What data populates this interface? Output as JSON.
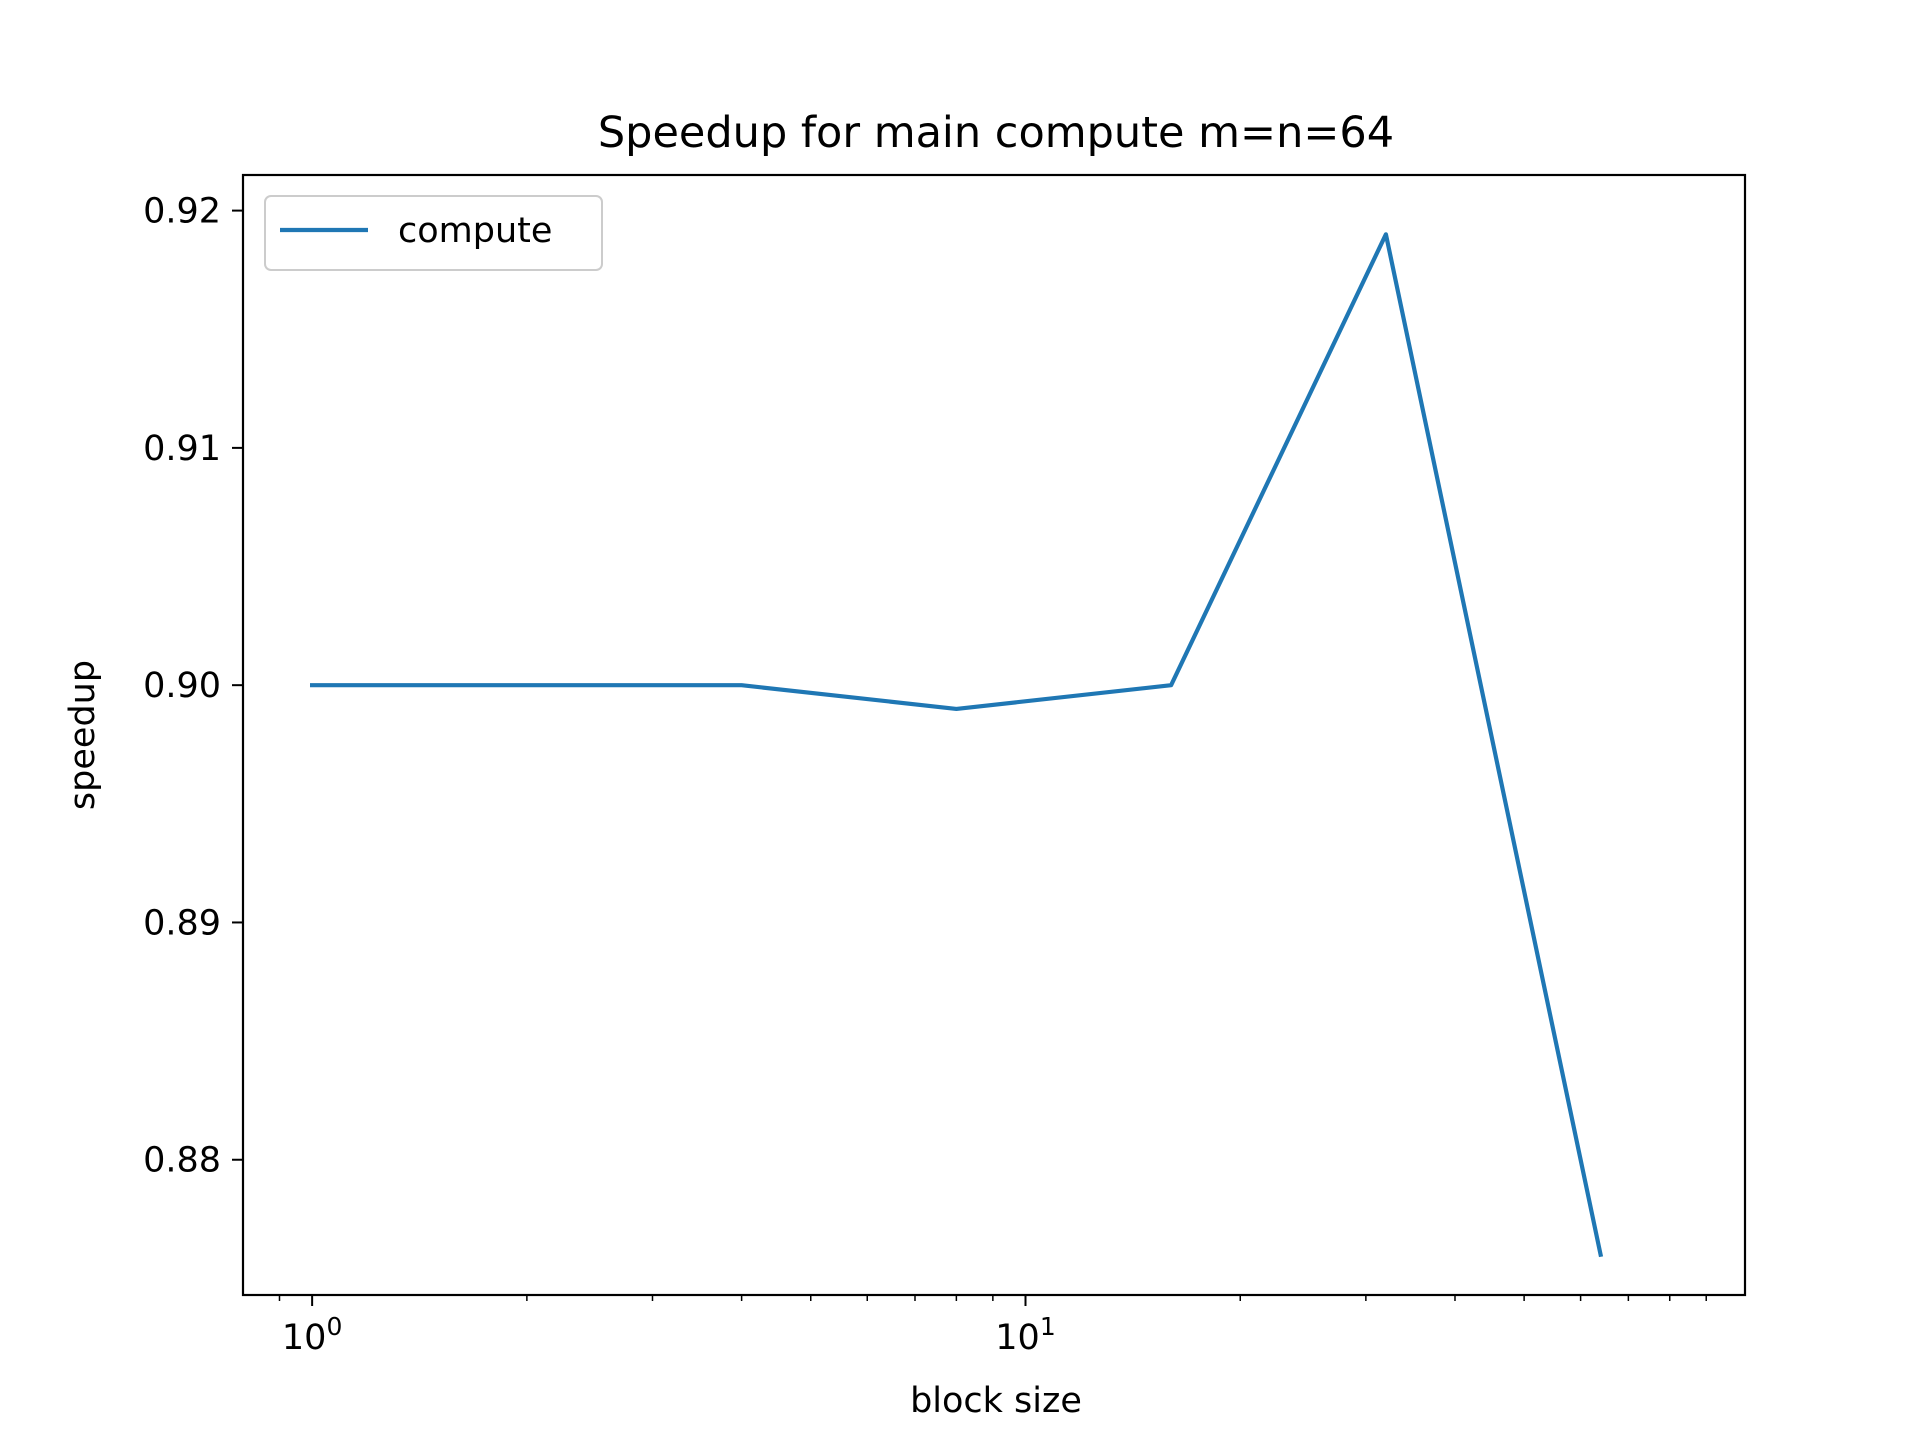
{
  "chart_data": {
    "type": "line",
    "title": "Speedup for main compute m=n=64",
    "xlabel": "block size",
    "ylabel": "speedup",
    "xscale": "log",
    "xlim": [
      0.8,
      102
    ],
    "ylim": [
      0.8743,
      0.9215
    ],
    "x_ticks": [
      {
        "value": 1,
        "base": "10",
        "exp": "0"
      },
      {
        "value": 10,
        "base": "10",
        "exp": "1"
      }
    ],
    "y_ticks": [
      {
        "value": 0.88,
        "label": "0.88"
      },
      {
        "value": 0.89,
        "label": "0.89"
      },
      {
        "value": 0.9,
        "label": "0.90"
      },
      {
        "value": 0.91,
        "label": "0.91"
      },
      {
        "value": 0.92,
        "label": "0.92"
      }
    ],
    "legend": {
      "position": "upper-left",
      "entries": [
        "compute"
      ]
    },
    "grid": false,
    "colors": {
      "compute": "#1f77b4"
    },
    "series": [
      {
        "name": "compute",
        "x": [
          1,
          4,
          8,
          16,
          32,
          64
        ],
        "y": [
          0.9,
          0.9,
          0.899,
          0.9,
          0.919,
          0.876
        ]
      }
    ]
  }
}
